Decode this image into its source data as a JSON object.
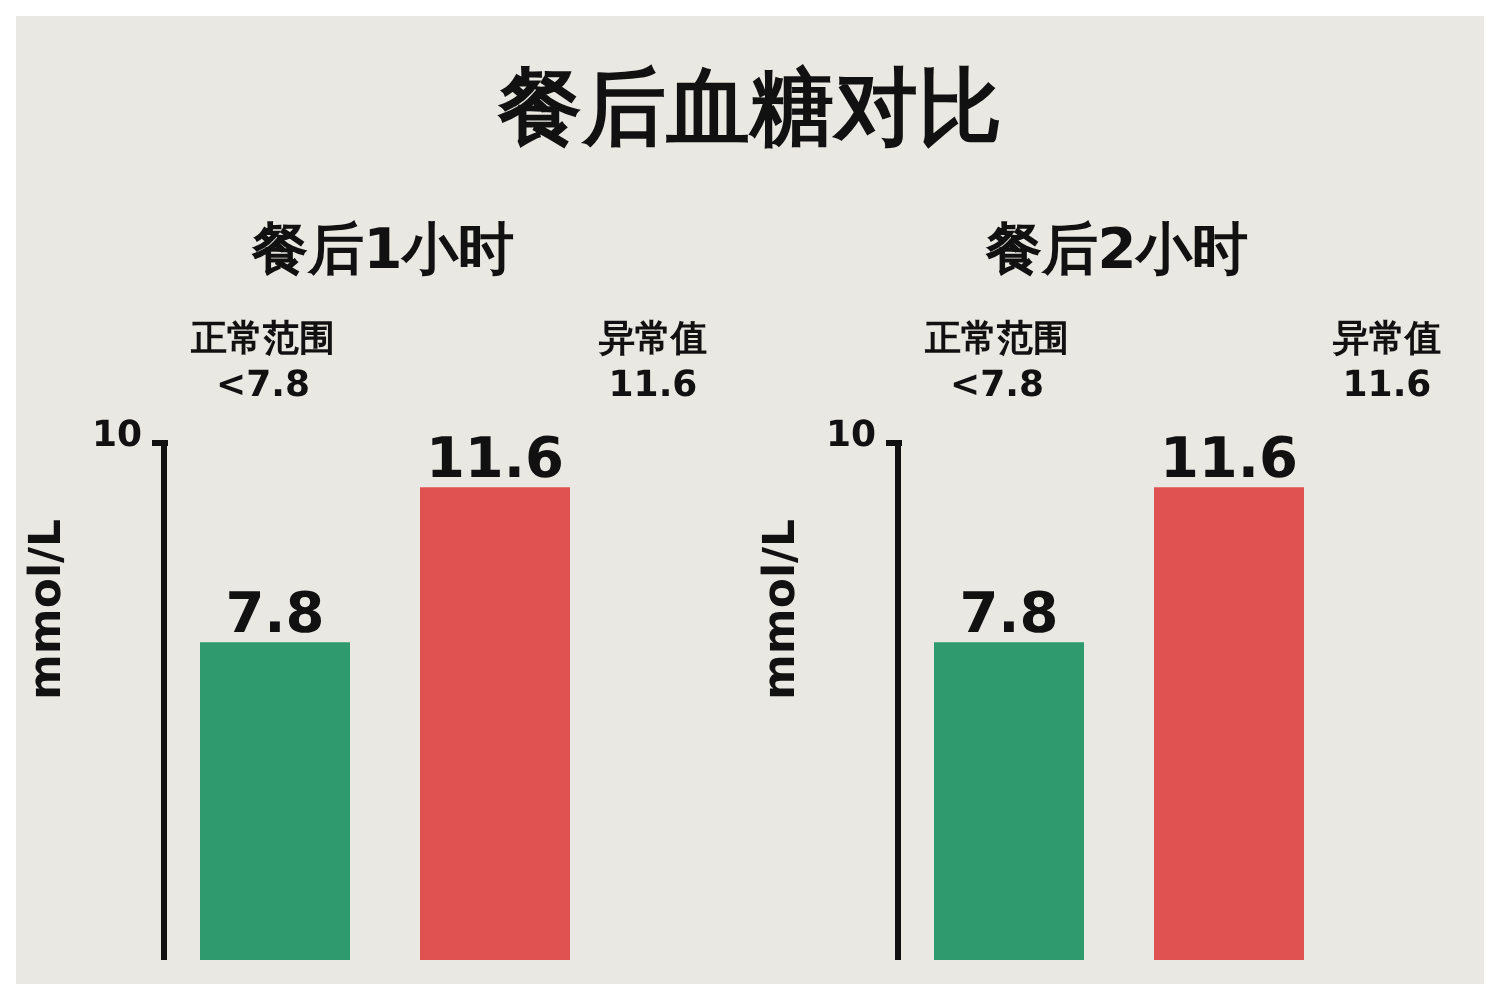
{
  "chart_data": [
    {
      "type": "bar",
      "title": "餐后血糖对比",
      "subtitle": "餐后1小时",
      "categories": [
        null,
        null
      ],
      "values": [
        7.8,
        11.6
      ],
      "colors": [
        "#2e9a6e",
        "#e05252"
      ],
      "ylabel": "mmol/L",
      "data_labels": true,
      "annotations": [
        "正常范围\n<7.8",
        "异常值\n11.6",
        "10"
      ]
    },
    {
      "type": "bar",
      "title": "餐后2小时",
      "categories": [
        null,
        null
      ],
      "values": [
        7.8,
        11.6
      ],
      "colors": [
        "#2e9a6e",
        "#e05252"
      ],
      "ylabel": "mmol/L",
      "data_labels": true,
      "annotations": [
        "正常范围\n<7.8",
        "异常值\n11.6",
        "10"
      ]
    }
  ]
}
